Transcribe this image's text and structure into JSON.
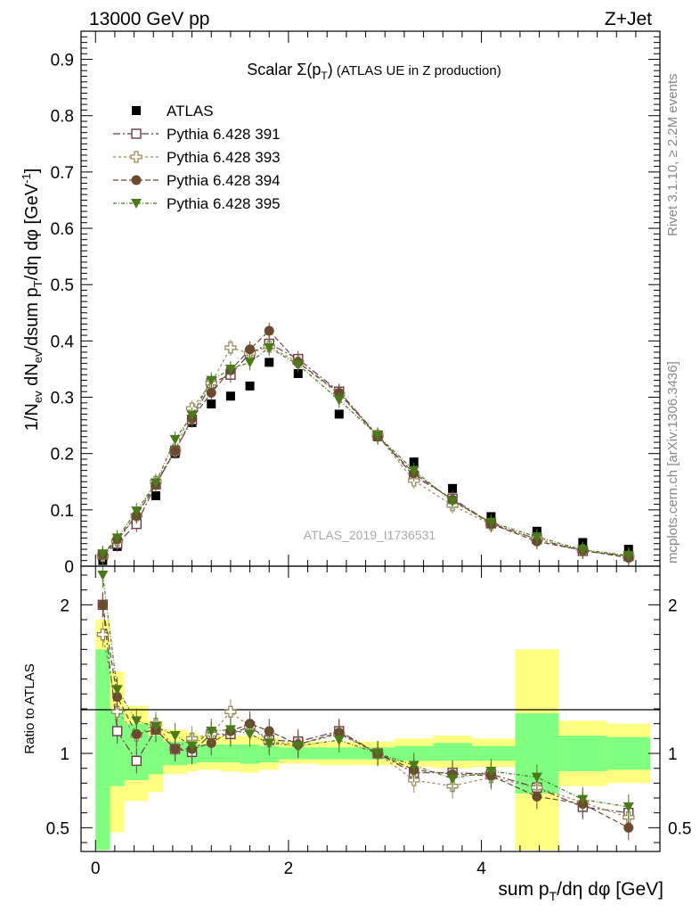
{
  "header": {
    "left": "13000 GeV pp",
    "right": "Z+Jet"
  },
  "side_labels": {
    "rivet": "Rivet 3.1.10, ≥ 2.2M events",
    "mcplots": "mcplots.cern.ch [arXiv:1306.3436]"
  },
  "colors": {
    "atlas": "#000000",
    "p391": "#6b3a4d",
    "p393": "#9a8a5a",
    "p394": "#6b4a30",
    "p395": "#4a7a1a",
    "band_yellow": "#ffff80",
    "band_green": "#80ff80"
  },
  "chart_data": [
    {
      "type": "scatter",
      "title": "Scalar Σ(pT) (ATLAS UE in Z production)",
      "watermark": "ATLAS_2019_I1736531",
      "ylabel": "1/Nev dNev/dsum pT/dη dφ [GeV⁻¹]",
      "ylim": [
        0,
        0.95
      ],
      "xlim": [
        -0.15,
        5.85
      ],
      "yticks": [
        "0",
        "0.1",
        "0.2",
        "0.3",
        "0.4",
        "0.5",
        "0.6",
        "0.7",
        "0.8",
        "0.9"
      ],
      "legend_position": "top-left",
      "x": [
        0.075,
        0.225,
        0.425,
        0.625,
        0.825,
        1.0,
        1.2,
        1.4,
        1.6,
        1.8,
        2.1,
        2.525,
        2.925,
        3.3,
        3.7,
        4.1,
        4.575,
        5.05,
        5.525
      ],
      "series": [
        {
          "name": "ATLAS",
          "marker": "filled-square",
          "values": [
            0.01,
            0.035,
            0.08,
            0.125,
            0.2,
            0.255,
            0.288,
            0.302,
            0.32,
            0.362,
            0.342,
            0.27,
            0.23,
            0.185,
            0.138,
            0.088,
            0.062,
            0.042,
            0.03
          ]
        },
        {
          "name": "Pythia 6.428 391",
          "marker": "open-square",
          "values": [
            0.02,
            0.04,
            0.075,
            0.145,
            0.205,
            0.26,
            0.325,
            0.34,
            0.378,
            0.395,
            0.368,
            0.31,
            0.232,
            0.16,
            0.12,
            0.076,
            0.048,
            0.027,
            0.018
          ]
        },
        {
          "name": "Pythia 6.428 393",
          "marker": "open-cross",
          "values": [
            0.018,
            0.045,
            0.09,
            0.15,
            0.205,
            0.28,
            0.325,
            0.388,
            0.378,
            0.39,
            0.362,
            0.305,
            0.232,
            0.152,
            0.108,
            0.074,
            0.048,
            0.028,
            0.017
          ]
        },
        {
          "name": "Pythia 6.428 394",
          "marker": "filled-circle",
          "values": [
            0.02,
            0.048,
            0.09,
            0.145,
            0.205,
            0.262,
            0.308,
            0.348,
            0.385,
            0.418,
            0.362,
            0.308,
            0.23,
            0.165,
            0.118,
            0.075,
            0.044,
            0.028,
            0.015
          ]
        },
        {
          "name": "Pythia 6.428 395",
          "marker": "filled-triangle-down",
          "values": [
            0.022,
            0.05,
            0.098,
            0.148,
            0.225,
            0.268,
            0.33,
            0.35,
            0.362,
            0.388,
            0.358,
            0.295,
            0.232,
            0.17,
            0.115,
            0.078,
            0.052,
            0.029,
            0.019
          ]
        }
      ]
    },
    {
      "type": "scatter",
      "ylabel": "Ratio to ATLAS",
      "xlabel": "sum pT/dη dφ [GeV]",
      "ylim": [
        0.34,
        2.26
      ],
      "xlim": [
        -0.15,
        5.85
      ],
      "xticks": [
        "0",
        "2",
        "4"
      ],
      "yticks": [
        "0.5",
        "1",
        "2"
      ],
      "bins": [
        {
          "lo": 0.0,
          "hi": 0.15,
          "yellow": [
            0.35,
            1.9
          ],
          "green": [
            0.35,
            1.7
          ]
        },
        {
          "lo": 0.15,
          "hi": 0.3,
          "yellow": [
            0.47,
            1.55
          ],
          "green": [
            0.78,
            1.3
          ]
        },
        {
          "lo": 0.3,
          "hi": 0.55,
          "yellow": [
            0.68,
            1.32
          ],
          "green": [
            0.82,
            1.2
          ]
        },
        {
          "lo": 0.55,
          "hi": 0.7,
          "yellow": [
            0.74,
            1.22
          ],
          "green": [
            0.86,
            1.12
          ]
        },
        {
          "lo": 0.7,
          "hi": 0.95,
          "yellow": [
            0.86,
            1.16
          ],
          "green": [
            0.92,
            1.08
          ]
        },
        {
          "lo": 0.95,
          "hi": 1.05,
          "yellow": [
            0.88,
            1.14
          ],
          "green": [
            0.93,
            1.07
          ]
        },
        {
          "lo": 1.05,
          "hi": 1.3,
          "yellow": [
            0.89,
            1.12
          ],
          "green": [
            0.94,
            1.06
          ]
        },
        {
          "lo": 1.3,
          "hi": 1.5,
          "yellow": [
            0.88,
            1.12
          ],
          "green": [
            0.94,
            1.06
          ]
        },
        {
          "lo": 1.5,
          "hi": 1.7,
          "yellow": [
            0.87,
            1.12
          ],
          "green": [
            0.93,
            1.06
          ]
        },
        {
          "lo": 1.7,
          "hi": 1.9,
          "yellow": [
            0.89,
            1.11
          ],
          "green": [
            0.94,
            1.05
          ]
        },
        {
          "lo": 1.9,
          "hi": 2.3,
          "yellow": [
            0.93,
            1.08
          ],
          "green": [
            0.96,
            1.04
          ]
        },
        {
          "lo": 2.3,
          "hi": 2.75,
          "yellow": [
            0.92,
            1.08
          ],
          "green": [
            0.96,
            1.04
          ]
        },
        {
          "lo": 2.75,
          "hi": 3.1,
          "yellow": [
            0.92,
            1.08
          ],
          "green": [
            0.96,
            1.04
          ]
        },
        {
          "lo": 3.1,
          "hi": 3.5,
          "yellow": [
            0.91,
            1.1
          ],
          "green": [
            0.95,
            1.05
          ]
        },
        {
          "lo": 3.5,
          "hi": 3.9,
          "yellow": [
            0.9,
            1.12
          ],
          "green": [
            0.95,
            1.07
          ]
        },
        {
          "lo": 3.9,
          "hi": 4.35,
          "yellow": [
            0.91,
            1.1
          ],
          "green": [
            0.95,
            1.05
          ]
        },
        {
          "lo": 4.35,
          "hi": 4.8,
          "yellow": [
            0.35,
            1.7
          ],
          "green": [
            0.73,
            1.27
          ]
        },
        {
          "lo": 4.8,
          "hi": 5.3,
          "yellow": [
            0.78,
            1.22
          ],
          "green": [
            0.88,
            1.12
          ]
        },
        {
          "lo": 5.3,
          "hi": 5.75,
          "yellow": [
            0.8,
            1.2
          ],
          "green": [
            0.89,
            1.11
          ]
        }
      ],
      "x": [
        0.075,
        0.225,
        0.425,
        0.625,
        0.825,
        1.0,
        1.2,
        1.4,
        1.6,
        1.8,
        2.1,
        2.525,
        2.925,
        3.3,
        3.7,
        4.1,
        4.575,
        5.05,
        5.525
      ],
      "series": [
        {
          "name": "Pythia 6.428 391",
          "marker": "open-square",
          "values": [
            2.0,
            1.15,
            0.95,
            1.16,
            1.03,
            1.01,
            1.13,
            1.13,
            1.18,
            1.09,
            1.08,
            1.15,
            1.0,
            0.87,
            0.87,
            0.86,
            0.77,
            0.64,
            0.6
          ]
        },
        {
          "name": "Pythia 6.428 393",
          "marker": "open-cross",
          "values": [
            1.8,
            1.28,
            1.12,
            1.2,
            1.03,
            1.1,
            1.13,
            1.28,
            1.18,
            1.08,
            1.06,
            1.13,
            1.0,
            0.82,
            0.78,
            0.84,
            0.77,
            0.67,
            0.57
          ]
        },
        {
          "name": "Pythia 6.428 394",
          "marker": "filled-circle",
          "values": [
            2.0,
            1.38,
            1.13,
            1.16,
            1.03,
            1.03,
            1.07,
            1.15,
            1.2,
            1.15,
            1.06,
            1.14,
            1.0,
            0.89,
            0.86,
            0.85,
            0.71,
            0.66,
            0.5
          ]
        },
        {
          "name": "Pythia 6.428 395",
          "marker": "filled-triangle-down",
          "values": [
            2.2,
            1.43,
            1.22,
            1.18,
            1.12,
            1.05,
            1.15,
            1.16,
            1.13,
            1.07,
            1.05,
            1.09,
            1.0,
            0.92,
            0.83,
            0.88,
            0.84,
            0.69,
            0.64
          ]
        }
      ]
    }
  ]
}
